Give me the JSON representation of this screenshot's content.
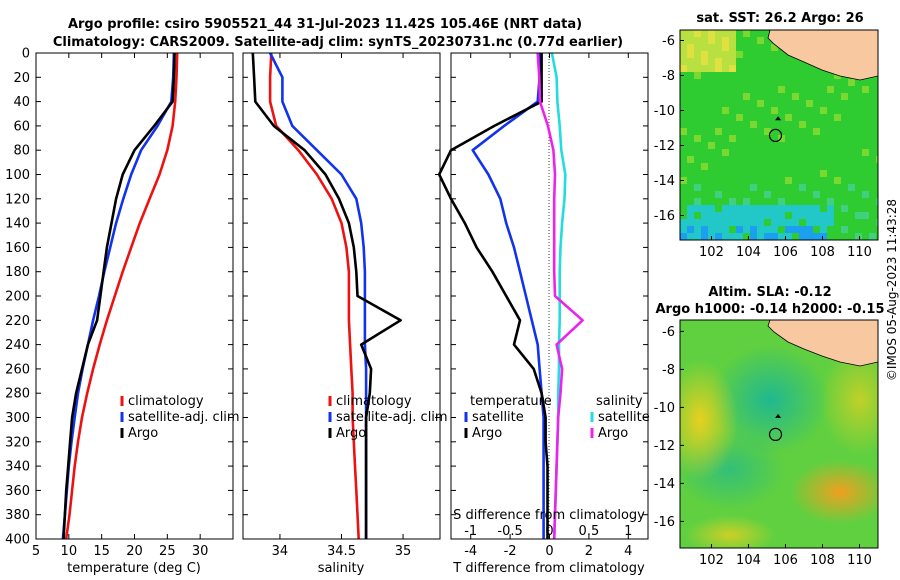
{
  "header": {
    "title_line1": "Argo profile: csiro 5905521_44 31-Jul-2023 11.42S 105.46E (NRT data)",
    "title_line2": "Climatology: CARS2009. Satellite-adj clim: synTS_20230731.nc (0.77d earlier)"
  },
  "watermark": "©IMOS 05-Aug-2023 11:43:28",
  "colors": {
    "red": "#ee1111",
    "blue": "#1133ee",
    "black": "#000000",
    "cyan": "#22dddd",
    "magenta": "#ee22ee"
  },
  "chart_data": [
    {
      "type": "line",
      "id": "temperature",
      "xlabel": "temperature (deg C)",
      "xlim": [
        5,
        35
      ],
      "ylim": [
        0,
        400
      ],
      "xticks": [
        "5",
        "10",
        "15",
        "20",
        "25",
        "30"
      ],
      "yticks": [
        "0",
        "20",
        "40",
        "60",
        "80",
        "100",
        "120",
        "140",
        "160",
        "180",
        "200",
        "220",
        "240",
        "260",
        "280",
        "300",
        "320",
        "340",
        "360",
        "380",
        "400"
      ],
      "legend": [
        "climatology",
        "satellite-adj. clim",
        "Argo"
      ],
      "series": [
        {
          "name": "climatology",
          "color": "#ee1111",
          "x": [
            26.5,
            26.4,
            26.2,
            25.8,
            25.0,
            23.8,
            22.3,
            20.8,
            19.5,
            18.2,
            17.0,
            15.8,
            14.7,
            13.7,
            12.8,
            12.0,
            11.4,
            10.9,
            10.5,
            10.1,
            9.6
          ],
          "y": [
            0,
            20,
            40,
            60,
            80,
            100,
            120,
            140,
            160,
            180,
            200,
            220,
            240,
            260,
            280,
            300,
            320,
            340,
            360,
            380,
            400
          ]
        },
        {
          "name": "satellite-adj. clim",
          "color": "#1133ee",
          "x": [
            26.0,
            25.9,
            25.6,
            23.5,
            21.0,
            19.5,
            18.3,
            17.2,
            16.3,
            15.4,
            14.6,
            13.7,
            12.9,
            12.1,
            11.4,
            10.9,
            10.4,
            10.0,
            9.7,
            9.4,
            9.1
          ],
          "y": [
            0,
            20,
            40,
            60,
            80,
            100,
            120,
            140,
            160,
            180,
            200,
            220,
            240,
            260,
            280,
            300,
            320,
            340,
            360,
            380,
            400
          ]
        },
        {
          "name": "Argo",
          "color": "#000000",
          "x": [
            26.1,
            26.0,
            25.8,
            23.0,
            20.0,
            18.2,
            17.2,
            16.5,
            15.8,
            15.3,
            14.8,
            14.3,
            12.9,
            12.0,
            11.1,
            10.5,
            10.2,
            9.9,
            9.6,
            9.4,
            9.2
          ],
          "y": [
            0,
            20,
            40,
            60,
            80,
            100,
            120,
            140,
            160,
            180,
            200,
            220,
            240,
            260,
            280,
            300,
            320,
            340,
            360,
            380,
            400
          ]
        }
      ]
    },
    {
      "type": "line",
      "id": "salinity",
      "xlabel": "salinity",
      "xlim": [
        33.7,
        35.3
      ],
      "ylim": [
        0,
        400
      ],
      "xticks": [
        "34",
        "34.5",
        "35"
      ],
      "legend": [
        "climatology",
        "satellite-adj. clim",
        "Argo"
      ],
      "series": [
        {
          "name": "climatology",
          "color": "#ee1111",
          "x": [
            33.93,
            33.92,
            33.92,
            33.97,
            34.15,
            34.3,
            34.42,
            34.5,
            34.54,
            34.56,
            34.56,
            34.56,
            34.57,
            34.58,
            34.59,
            34.59,
            34.6,
            34.61,
            34.62,
            34.63,
            34.64
          ],
          "y": [
            0,
            20,
            40,
            60,
            80,
            100,
            120,
            140,
            160,
            180,
            200,
            220,
            240,
            260,
            280,
            300,
            320,
            340,
            360,
            380,
            400
          ]
        },
        {
          "name": "satellite-adj. clim",
          "color": "#1133ee",
          "x": [
            33.92,
            34.02,
            34.02,
            34.1,
            34.3,
            34.5,
            34.62,
            34.66,
            34.68,
            34.69,
            34.69,
            34.69,
            34.69,
            34.7,
            34.7,
            34.7,
            34.7,
            34.7,
            34.7,
            34.7,
            34.7
          ],
          "y": [
            0,
            20,
            40,
            60,
            80,
            100,
            120,
            140,
            160,
            180,
            200,
            220,
            240,
            260,
            280,
            300,
            320,
            340,
            360,
            380,
            400
          ]
        },
        {
          "name": "Argo",
          "color": "#000000",
          "x": [
            33.78,
            33.79,
            33.8,
            33.95,
            34.2,
            34.37,
            34.48,
            34.56,
            34.6,
            34.62,
            34.63,
            34.98,
            34.66,
            34.74,
            34.73,
            34.7,
            34.7,
            34.7,
            34.7,
            34.7,
            34.7
          ],
          "y": [
            0,
            20,
            40,
            60,
            80,
            100,
            120,
            140,
            160,
            180,
            200,
            220,
            240,
            260,
            280,
            300,
            320,
            340,
            360,
            380,
            400
          ]
        }
      ]
    },
    {
      "type": "line",
      "id": "difference",
      "xlabel": "T difference from climatology",
      "xlabel_top": "S difference from climatology",
      "xlim": [
        -5,
        5
      ],
      "ylim": [
        0,
        400
      ],
      "xlim_top": [
        -1.25,
        1.25
      ],
      "xticks": [
        "-4",
        "-2",
        "0",
        "2",
        "4"
      ],
      "xticks_top": [
        "-1",
        "-0.5",
        "0",
        "0.5",
        "1"
      ],
      "legend_temperature": {
        "title": "temperature",
        "entries": [
          "satellite",
          "Argo"
        ]
      },
      "legend_salinity": {
        "title": "salinity",
        "entries": [
          "satellite",
          "Argo"
        ]
      },
      "series": [
        {
          "name": "temperature satellite",
          "color": "#1133ee",
          "x": [
            -0.5,
            -0.5,
            -0.6,
            -2.3,
            -3.9,
            -3.1,
            -2.5,
            -2.2,
            -1.8,
            -1.5,
            -1.2,
            -0.9,
            -0.6,
            -0.5,
            -0.4,
            -0.3,
            -0.3,
            -0.3,
            -0.3,
            -0.3,
            -0.3
          ],
          "y": [
            0,
            20,
            40,
            60,
            80,
            100,
            120,
            140,
            160,
            180,
            200,
            220,
            240,
            260,
            280,
            300,
            320,
            340,
            360,
            380,
            400
          ]
        },
        {
          "name": "temperature Argo",
          "color": "#000000",
          "x": [
            -0.4,
            -0.4,
            -0.4,
            -2.8,
            -5.0,
            -5.6,
            -5.0,
            -4.3,
            -3.7,
            -2.9,
            -2.2,
            -1.5,
            -1.8,
            -0.8,
            -0.4,
            -0.2,
            -0.2,
            -0.1,
            -0.1,
            -0.1,
            -0.1
          ],
          "y": [
            0,
            20,
            40,
            60,
            80,
            100,
            120,
            140,
            160,
            180,
            200,
            220,
            240,
            260,
            280,
            300,
            320,
            340,
            360,
            380,
            400
          ]
        },
        {
          "name": "salinity satellite",
          "color": "#22dddd",
          "x": [
            0.03,
            0.09,
            0.1,
            0.13,
            0.15,
            0.2,
            0.19,
            0.16,
            0.14,
            0.13,
            0.13,
            0.13,
            0.12,
            0.12,
            0.11,
            0.11,
            0.1,
            0.09,
            0.08,
            0.07,
            0.06
          ],
          "y": [
            0,
            20,
            40,
            60,
            80,
            100,
            120,
            140,
            160,
            180,
            200,
            220,
            240,
            260,
            280,
            300,
            320,
            340,
            360,
            380,
            400
          ]
        },
        {
          "name": "salinity Argo",
          "color": "#ee22ee",
          "x": [
            -0.15,
            -0.13,
            -0.12,
            -0.02,
            0.05,
            0.07,
            0.06,
            0.06,
            0.06,
            0.06,
            0.07,
            0.42,
            0.09,
            0.16,
            0.14,
            0.11,
            0.1,
            0.09,
            0.08,
            0.07,
            0.06
          ],
          "y": [
            0,
            20,
            40,
            60,
            80,
            100,
            120,
            140,
            160,
            180,
            200,
            220,
            240,
            260,
            280,
            300,
            320,
            340,
            360,
            380,
            400
          ]
        }
      ]
    },
    {
      "type": "heatmap",
      "id": "sst_map",
      "title": "sat. SST: 26.2 Argo: 26",
      "xlim": [
        100.3,
        111
      ],
      "ylim": [
        -17.4,
        -5.4
      ],
      "xticks": [
        "102",
        "104",
        "106",
        "108",
        "110"
      ],
      "yticks": [
        "-6",
        "-8",
        "-10",
        "-12",
        "-14",
        "-16"
      ],
      "argo_position": {
        "lon": 105.46,
        "lat": -11.42
      }
    },
    {
      "type": "heatmap",
      "id": "sla_map",
      "title": "Altim. SLA: -0.12",
      "subtitle": "Argo h1000: -0.14 h2000: -0.15",
      "xlim": [
        100.3,
        111
      ],
      "ylim": [
        -17.4,
        -5.4
      ],
      "xticks": [
        "102",
        "104",
        "106",
        "108",
        "110"
      ],
      "yticks": [
        "-6",
        "-8",
        "-10",
        "-12",
        "-14",
        "-16"
      ],
      "argo_position": {
        "lon": 105.46,
        "lat": -11.42
      }
    }
  ]
}
